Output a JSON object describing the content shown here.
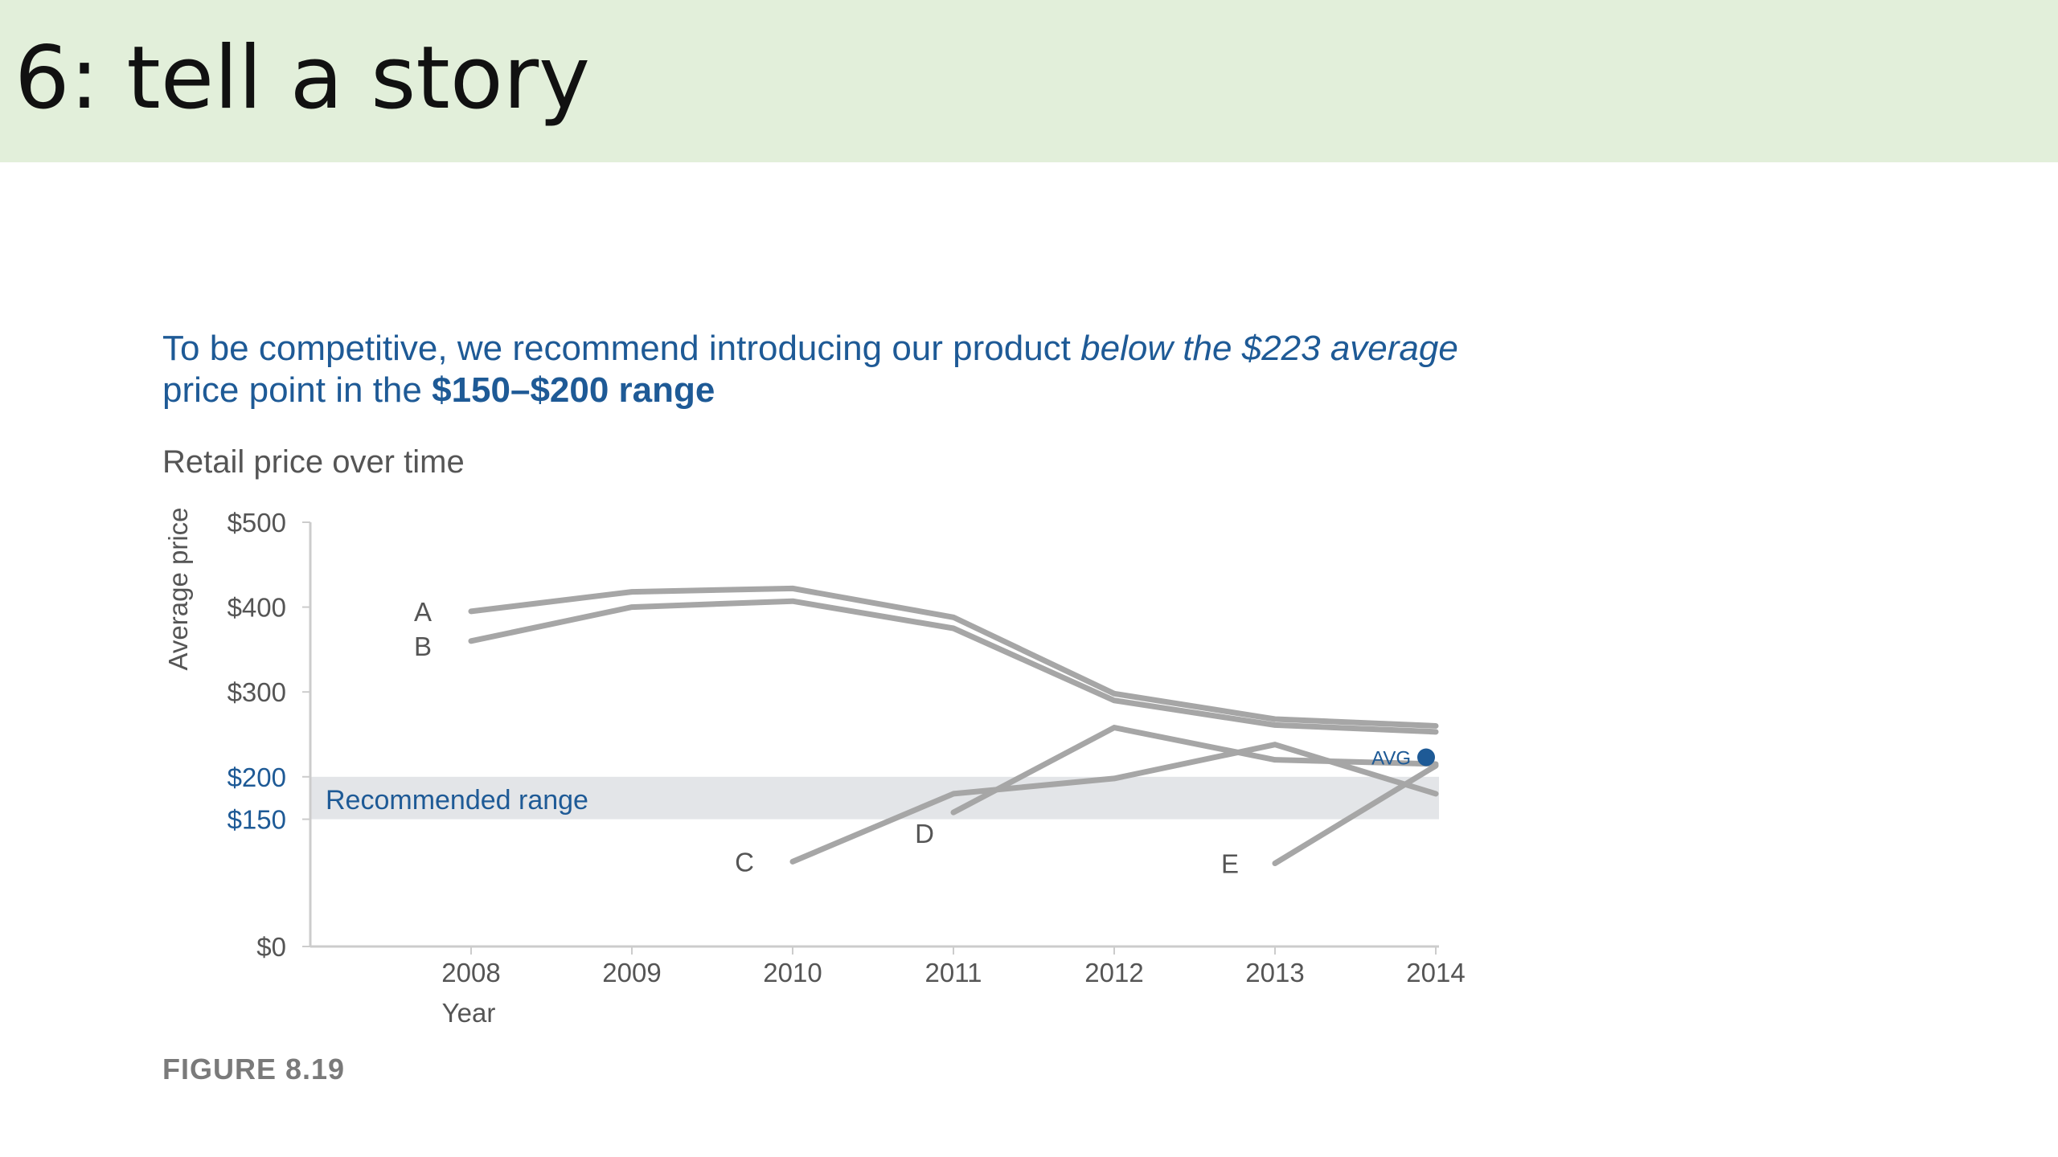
{
  "slide": {
    "title": "6: tell a story"
  },
  "headline": {
    "part1": "To be competitive, we recommend introducing our product ",
    "part2_italic": "below the $223 average",
    "part3": " price point in the ",
    "part4_bold": "$150–$200 range"
  },
  "figure_caption": "FIGURE 8.19",
  "colors": {
    "accent": "#1e5a96",
    "line": "#a6a6a6",
    "band": "#e3e5e8",
    "axis": "#cccccc"
  },
  "chart_data": {
    "type": "line",
    "title": "Retail price over time",
    "xlabel": "Year",
    "ylabel": "Average price",
    "x": [
      "2008",
      "2009",
      "2010",
      "2011",
      "2012",
      "2013",
      "2014"
    ],
    "ylim": [
      0,
      500
    ],
    "y_ticks": [
      {
        "value": 0,
        "label": "$0",
        "highlight": false
      },
      {
        "value": 150,
        "label": "$150",
        "highlight": true
      },
      {
        "value": 200,
        "label": "$200",
        "highlight": true
      },
      {
        "value": 300,
        "label": "$300",
        "highlight": false
      },
      {
        "value": 400,
        "label": "$400",
        "highlight": false
      },
      {
        "value": 500,
        "label": "$500",
        "highlight": false
      }
    ],
    "recommended_range": {
      "label": "Recommended range",
      "low": 150,
      "high": 200
    },
    "average": {
      "label": "AVG",
      "value": 223
    },
    "series": [
      {
        "name": "A",
        "x": [
          "2008",
          "2009",
          "2010",
          "2011",
          "2012",
          "2013",
          "2014"
        ],
        "values": [
          395,
          418,
          422,
          388,
          298,
          268,
          260
        ]
      },
      {
        "name": "B",
        "x": [
          "2008",
          "2009",
          "2010",
          "2011",
          "2012",
          "2013",
          "2014"
        ],
        "values": [
          360,
          400,
          407,
          375,
          290,
          261,
          253
        ]
      },
      {
        "name": "C",
        "x": [
          "2010",
          "2011",
          "2012",
          "2013",
          "2014"
        ],
        "values": [
          100,
          180,
          198,
          238,
          180
        ]
      },
      {
        "name": "D",
        "x": [
          "2011",
          "2012",
          "2013",
          "2014"
        ],
        "values": [
          158,
          258,
          220,
          215
        ]
      },
      {
        "name": "E",
        "x": [
          "2013",
          "2014"
        ],
        "values": [
          98,
          213
        ]
      }
    ]
  }
}
